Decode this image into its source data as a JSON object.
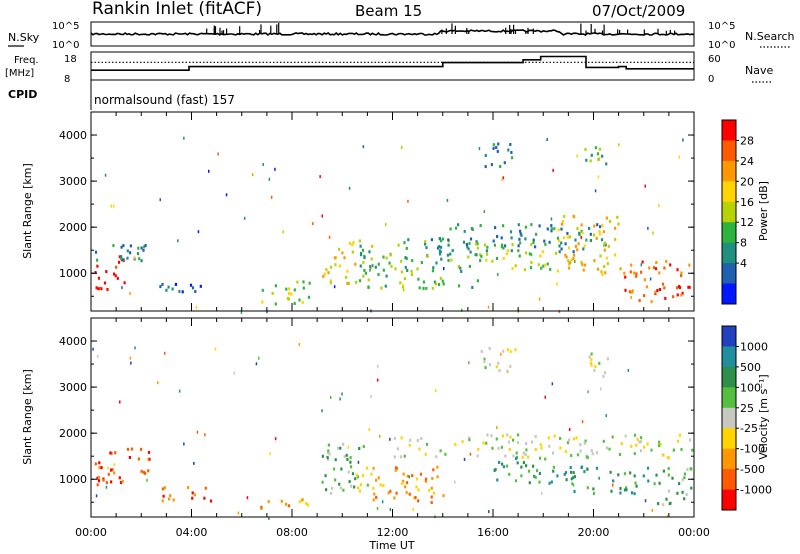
{
  "header": {
    "station": "Rankin Inlet (fitACF)",
    "beam": "Beam 15",
    "date": "07/Oct/2009"
  },
  "sky_panel": {
    "label": "N.Sky",
    "right_label": "N.Search",
    "ticks_left": [
      "10^5",
      "10^0"
    ],
    "ticks_right": [
      "10^5",
      "10^0"
    ]
  },
  "freq_panel": {
    "label_top": "Freq.",
    "label_bottom": "[MHz]",
    "ticks_left": [
      "18",
      "8"
    ],
    "ticks_right": [
      "60",
      "0"
    ],
    "right_label": "Nave"
  },
  "cpid": {
    "label": "CPID",
    "value": "normalsound (fast) 157"
  },
  "chart_data": [
    {
      "type": "heatmap",
      "name": "power",
      "ylabel": "Slant Range [km]",
      "yticks": [
        "4000",
        "3000",
        "2000",
        "1000"
      ],
      "xlabel": "Time UT",
      "xticks": [
        "00:00",
        "04:00",
        "08:00",
        "12:00",
        "16:00",
        "20:00",
        "00:00"
      ],
      "xlim": [
        0,
        24
      ],
      "ylim": [
        180,
        4500
      ],
      "colorbar": {
        "label": "Power [dB]",
        "ticks": [
          "28",
          "24",
          "20",
          "16",
          "12",
          "8",
          "4"
        ],
        "colors": [
          "#ff0000",
          "#ff5a00",
          "#ff9800",
          "#ffd400",
          "#b8d200",
          "#2db43c",
          "#1f8f80",
          "#2060b0",
          "#0018ff"
        ]
      },
      "echo_regions": [
        {
          "t0": 0.1,
          "t1": 1.3,
          "r0": 650,
          "r1": 1500,
          "level": 0
        },
        {
          "t0": 0.1,
          "t1": 2.4,
          "r0": 1200,
          "r1": 1700,
          "level": 6
        },
        {
          "t0": 2.6,
          "t1": 4.8,
          "r0": 600,
          "r1": 900,
          "level": 7
        },
        {
          "t0": 6.7,
          "t1": 8.7,
          "r0": 350,
          "r1": 900,
          "level": 4
        },
        {
          "t0": 9.1,
          "t1": 10.5,
          "r0": 800,
          "r1": 1700,
          "level": 3
        },
        {
          "t0": 10.5,
          "t1": 15.5,
          "r0": 700,
          "r1": 1800,
          "level": 5
        },
        {
          "t0": 13.5,
          "t1": 20.5,
          "r0": 1500,
          "r1": 2100,
          "level": 6
        },
        {
          "t0": 15.0,
          "t1": 18.5,
          "r0": 1100,
          "r1": 1700,
          "level": 4
        },
        {
          "t0": 18.5,
          "t1": 21.0,
          "r0": 1000,
          "r1": 2300,
          "level": 3
        },
        {
          "t0": 21.0,
          "t1": 23.9,
          "r0": 400,
          "r1": 1300,
          "level": 1
        },
        {
          "t0": 15.5,
          "t1": 16.8,
          "r0": 3300,
          "r1": 3900,
          "level": 6
        },
        {
          "t0": 19.6,
          "t1": 20.6,
          "r0": 3200,
          "r1": 3800,
          "level": 5
        }
      ]
    },
    {
      "type": "heatmap",
      "name": "velocity",
      "ylabel": "Slant Range [km]",
      "yticks": [
        "4000",
        "3000",
        "2000",
        "1000"
      ],
      "xlabel": "Time UT",
      "xticks": [
        "00:00",
        "04:00",
        "08:00",
        "12:00",
        "16:00",
        "20:00",
        "00:00"
      ],
      "xlim": [
        0,
        24
      ],
      "ylim": [
        180,
        4500
      ],
      "colorbar": {
        "label": "Velocity [m s⁻¹]",
        "ticks": [
          "1000",
          "500",
          "100",
          "25",
          "-25",
          "-100",
          "-500",
          "-1000"
        ],
        "colors": [
          "#2040c0",
          "#1f8fa0",
          "#2e8f4a",
          "#55c040",
          "#c8c8c0",
          "#ffd400",
          "#ff9800",
          "#ff5a00",
          "#ff0000"
        ]
      },
      "echo_regions": [
        {
          "t0": 0.1,
          "t1": 2.4,
          "r0": 900,
          "r1": 1700,
          "level": 7
        },
        {
          "t0": 2.6,
          "t1": 4.8,
          "r0": 550,
          "r1": 900,
          "level": 7
        },
        {
          "t0": 6.7,
          "t1": 8.7,
          "r0": 300,
          "r1": 600,
          "level": 6
        },
        {
          "t0": 9.1,
          "t1": 11.0,
          "r0": 700,
          "r1": 1800,
          "level": 3
        },
        {
          "t0": 10.5,
          "t1": 14.0,
          "r0": 500,
          "r1": 1300,
          "level": 6
        },
        {
          "t0": 12.0,
          "t1": 23.9,
          "r0": 1500,
          "r1": 2000,
          "level": 4
        },
        {
          "t0": 16.0,
          "t1": 19.0,
          "r0": 900,
          "r1": 1500,
          "level": 2
        },
        {
          "t0": 19.0,
          "t1": 22.5,
          "r0": 700,
          "r1": 1300,
          "level": 2
        },
        {
          "t0": 22.5,
          "t1": 23.9,
          "r0": 400,
          "r1": 1300,
          "level": 3
        },
        {
          "t0": 15.5,
          "t1": 17.0,
          "r0": 3300,
          "r1": 3900,
          "level": 4
        },
        {
          "t0": 19.6,
          "t1": 20.6,
          "r0": 3200,
          "r1": 3800,
          "level": 4
        }
      ]
    }
  ]
}
